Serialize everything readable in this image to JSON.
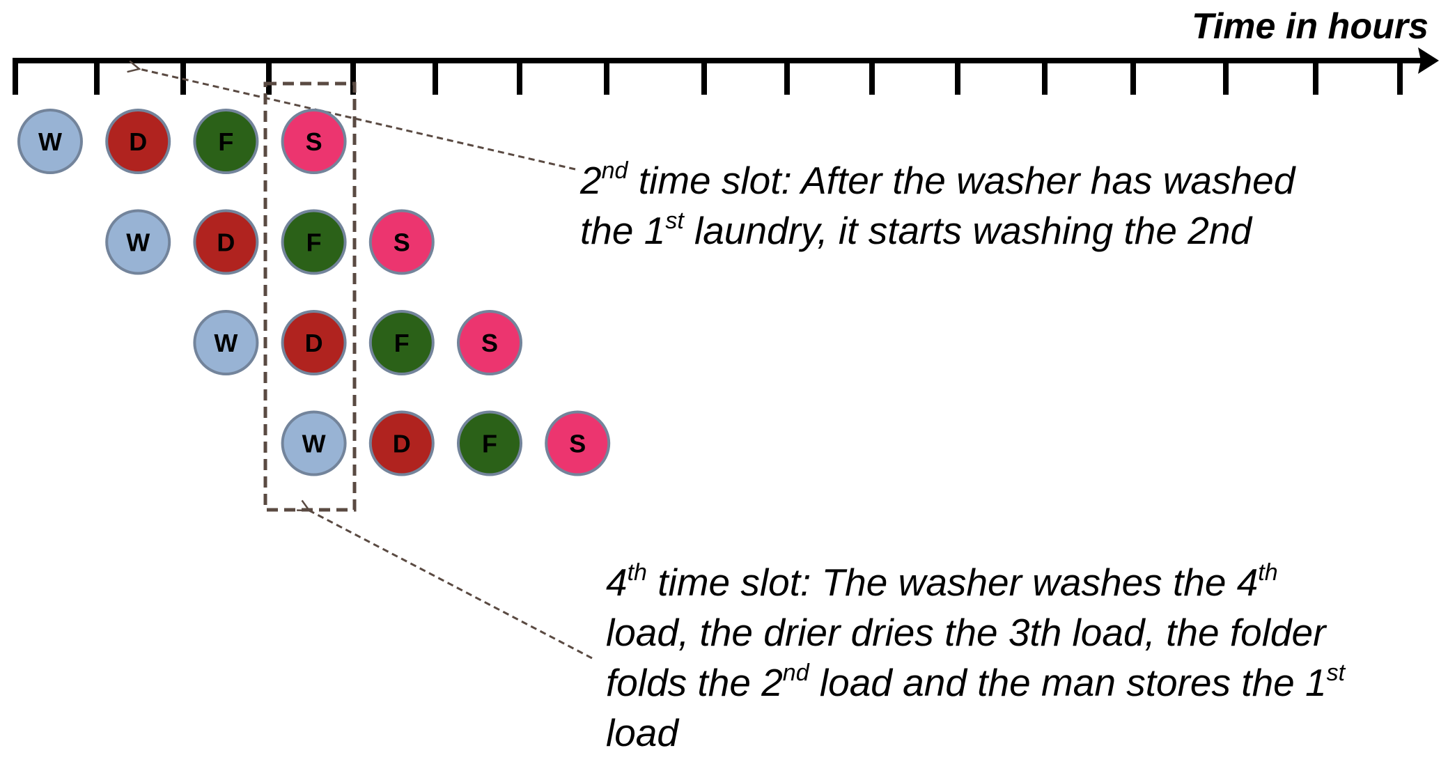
{
  "axis": {
    "title": "Time in hours"
  },
  "stages": {
    "W": {
      "label": "W",
      "color": "#98b3d4"
    },
    "D": {
      "label": "D",
      "color": "#b0231f"
    },
    "F": {
      "label": "F",
      "color": "#2b6118"
    },
    "S": {
      "label": "S",
      "color": "#ec356f"
    }
  },
  "loads": [
    {
      "start_slot": 0,
      "stages": [
        "W",
        "D",
        "F",
        "S"
      ]
    },
    {
      "start_slot": 1,
      "stages": [
        "W",
        "D",
        "F",
        "S"
      ]
    },
    {
      "start_slot": 2,
      "stages": [
        "W",
        "D",
        "F",
        "S"
      ]
    },
    {
      "start_slot": 3,
      "stages": [
        "W",
        "D",
        "F",
        "S"
      ]
    }
  ],
  "highlight_slot": 3,
  "colors": {
    "outline": "#73849b",
    "dash": "#5a4a42"
  },
  "notes": {
    "top": {
      "line1": {
        "a": "2",
        "a_sup": "nd",
        "b": " time slot: After the washer has washed"
      },
      "line2": {
        "a": "the 1",
        "a_sup": "st",
        "b": " laundry, it starts washing the 2nd"
      }
    },
    "bottom": {
      "line1": {
        "a": "4",
        "a_sup": "th",
        "b": " time slot: The washer washes the 4",
        "b_sup": "th"
      },
      "line2": "load, the drier dries the 3th load, the folder",
      "line3": {
        "a": "folds the 2",
        "a_sup": "nd",
        "b": " load and the man stores the 1",
        "b_sup": "st"
      },
      "line4": "load"
    }
  }
}
